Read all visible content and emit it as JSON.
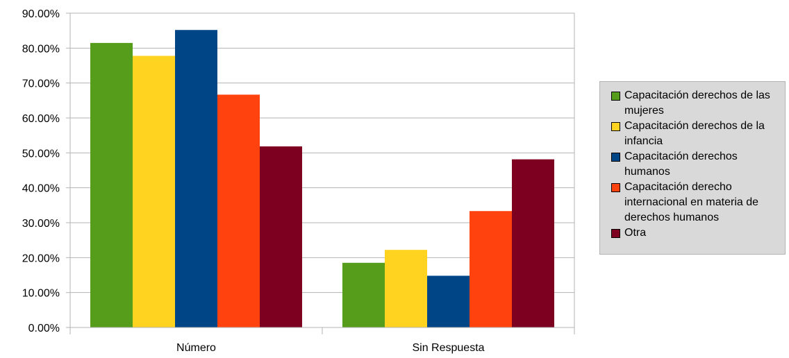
{
  "chart_data": {
    "type": "bar",
    "categories": [
      "Número",
      "Sin Respuesta"
    ],
    "series": [
      {
        "name": "Capacitación derechos de las mujeres",
        "color": "#579d1c",
        "values": [
          81.48,
          18.52
        ]
      },
      {
        "name": "Capacitación derechos de la infancia",
        "color": "#ffd320",
        "values": [
          77.78,
          22.22
        ]
      },
      {
        "name": "Capacitación derechos humanos",
        "color": "#004586",
        "values": [
          85.19,
          14.81
        ]
      },
      {
        "name": "Capacitación derecho internacional en materia de derechos humanos",
        "color": "#ff420e",
        "values": [
          66.67,
          33.33
        ]
      },
      {
        "name": "Otra",
        "color": "#7e0021",
        "values": [
          51.85,
          48.15
        ]
      }
    ],
    "title": "",
    "xlabel": "",
    "ylabel": "",
    "ylim": [
      0,
      90
    ],
    "yticks": [
      "0.00%",
      "10.00%",
      "20.00%",
      "30.00%",
      "40.00%",
      "50.00%",
      "60.00%",
      "70.00%",
      "80.00%",
      "90.00%"
    ],
    "grid": true,
    "legend": "right"
  }
}
